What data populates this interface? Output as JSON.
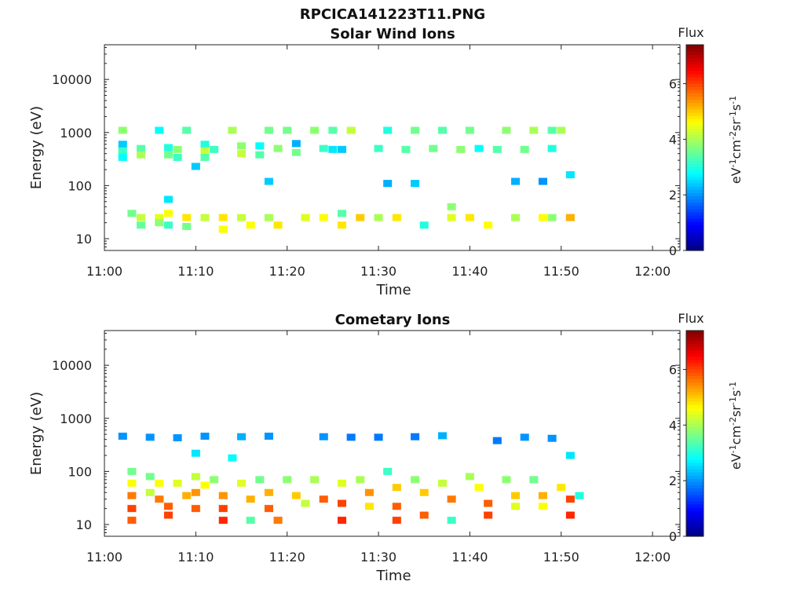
{
  "figure_title": "RPCICA141223T11.PNG",
  "colorbar": {
    "label": "Flux",
    "unit": "eV-1cm-2sr-1s-1",
    "ticks": [
      "0",
      "2",
      "4",
      "6"
    ],
    "range": [
      0,
      7.4
    ],
    "colormap": "jet"
  },
  "chart_data": [
    {
      "type": "heatmap",
      "title": "Solar Wind Ions",
      "xlabel": "Time",
      "ylabel": "Energy (eV)",
      "x_range": [
        "11:00",
        "12:03"
      ],
      "y_range": [
        6,
        45000
      ],
      "y_scale": "log",
      "x_ticks": [
        "11:00",
        "11:10",
        "11:20",
        "11:30",
        "11:40",
        "11:50",
        "12:00"
      ],
      "y_ticks": [
        "10",
        "100",
        "1000",
        "10000"
      ],
      "grid": false,
      "cells": [
        {
          "t": "11:02",
          "e": 600,
          "v": 2.4
        },
        {
          "t": "11:02",
          "e": 450,
          "v": 3.2
        },
        {
          "t": "11:02",
          "e": 340,
          "v": 2.8
        },
        {
          "t": "11:02",
          "e": 1100,
          "v": 3.8
        },
        {
          "t": "11:04",
          "e": 25,
          "v": 4.2
        },
        {
          "t": "11:04",
          "e": 18,
          "v": 3.5
        },
        {
          "t": "11:04",
          "e": 500,
          "v": 3.4
        },
        {
          "t": "11:04",
          "e": 380,
          "v": 4.0
        },
        {
          "t": "11:03",
          "e": 30,
          "v": 3.6
        },
        {
          "t": "11:06",
          "e": 1100,
          "v": 2.8
        },
        {
          "t": "11:06",
          "e": 25,
          "v": 4.4
        },
        {
          "t": "11:06",
          "e": 20,
          "v": 3.8
        },
        {
          "t": "11:07",
          "e": 520,
          "v": 3.0
        },
        {
          "t": "11:07",
          "e": 380,
          "v": 3.6
        },
        {
          "t": "11:07",
          "e": 30,
          "v": 4.6
        },
        {
          "t": "11:07",
          "e": 18,
          "v": 3.2
        },
        {
          "t": "11:07",
          "e": 55,
          "v": 2.6
        },
        {
          "t": "11:08",
          "e": 480,
          "v": 3.8
        },
        {
          "t": "11:08",
          "e": 340,
          "v": 3.2
        },
        {
          "t": "11:09",
          "e": 1100,
          "v": 3.4
        },
        {
          "t": "11:09",
          "e": 25,
          "v": 4.8
        },
        {
          "t": "11:09",
          "e": 17,
          "v": 3.6
        },
        {
          "t": "11:10",
          "e": 230,
          "v": 2.4
        },
        {
          "t": "11:11",
          "e": 600,
          "v": 3.0
        },
        {
          "t": "11:11",
          "e": 450,
          "v": 4.2
        },
        {
          "t": "11:11",
          "e": 340,
          "v": 3.4
        },
        {
          "t": "11:11",
          "e": 25,
          "v": 4.2
        },
        {
          "t": "11:12",
          "e": 480,
          "v": 3.2
        },
        {
          "t": "11:13",
          "e": 25,
          "v": 4.8
        },
        {
          "t": "11:13",
          "e": 15,
          "v": 4.6
        },
        {
          "t": "11:14",
          "e": 1100,
          "v": 4.0
        },
        {
          "t": "11:15",
          "e": 560,
          "v": 3.8
        },
        {
          "t": "11:15",
          "e": 400,
          "v": 4.2
        },
        {
          "t": "11:15",
          "e": 25,
          "v": 4.2
        },
        {
          "t": "11:16",
          "e": 18,
          "v": 4.6
        },
        {
          "t": "11:17",
          "e": 560,
          "v": 2.8
        },
        {
          "t": "11:17",
          "e": 380,
          "v": 3.4
        },
        {
          "t": "11:18",
          "e": 120,
          "v": 2.4
        },
        {
          "t": "11:18",
          "e": 1100,
          "v": 3.6
        },
        {
          "t": "11:18",
          "e": 25,
          "v": 4.0
        },
        {
          "t": "11:19",
          "e": 500,
          "v": 3.8
        },
        {
          "t": "11:19",
          "e": 18,
          "v": 4.8
        },
        {
          "t": "11:20",
          "e": 1100,
          "v": 3.6
        },
        {
          "t": "11:21",
          "e": 620,
          "v": 2.2
        },
        {
          "t": "11:21",
          "e": 420,
          "v": 3.6
        },
        {
          "t": "11:22",
          "e": 25,
          "v": 4.4
        },
        {
          "t": "11:23",
          "e": 1100,
          "v": 3.8
        },
        {
          "t": "11:24",
          "e": 500,
          "v": 3.2
        },
        {
          "t": "11:24",
          "e": 25,
          "v": 4.6
        },
        {
          "t": "11:25",
          "e": 480,
          "v": 2.6
        },
        {
          "t": "11:25",
          "e": 1100,
          "v": 3.4
        },
        {
          "t": "11:26",
          "e": 480,
          "v": 2.4
        },
        {
          "t": "11:26",
          "e": 30,
          "v": 3.4
        },
        {
          "t": "11:26",
          "e": 18,
          "v": 4.8
        },
        {
          "t": "11:27",
          "e": 1100,
          "v": 4.2
        },
        {
          "t": "11:28",
          "e": 25,
          "v": 5.0
        },
        {
          "t": "11:30",
          "e": 500,
          "v": 3.2
        },
        {
          "t": "11:30",
          "e": 25,
          "v": 4.0
        },
        {
          "t": "11:31",
          "e": 110,
          "v": 2.2
        },
        {
          "t": "11:31",
          "e": 1100,
          "v": 3.0
        },
        {
          "t": "11:32",
          "e": 25,
          "v": 4.8
        },
        {
          "t": "11:33",
          "e": 480,
          "v": 3.4
        },
        {
          "t": "11:34",
          "e": 110,
          "v": 2.4
        },
        {
          "t": "11:34",
          "e": 1100,
          "v": 3.6
        },
        {
          "t": "11:35",
          "e": 18,
          "v": 3.0
        },
        {
          "t": "11:36",
          "e": 500,
          "v": 3.6
        },
        {
          "t": "11:37",
          "e": 1100,
          "v": 3.4
        },
        {
          "t": "11:38",
          "e": 25,
          "v": 4.4
        },
        {
          "t": "11:38",
          "e": 40,
          "v": 3.8
        },
        {
          "t": "11:39",
          "e": 480,
          "v": 3.8
        },
        {
          "t": "11:40",
          "e": 1100,
          "v": 3.6
        },
        {
          "t": "11:40",
          "e": 25,
          "v": 4.8
        },
        {
          "t": "11:41",
          "e": 500,
          "v": 2.8
        },
        {
          "t": "11:42",
          "e": 18,
          "v": 4.6
        },
        {
          "t": "11:43",
          "e": 480,
          "v": 3.4
        },
        {
          "t": "11:44",
          "e": 1100,
          "v": 3.8
        },
        {
          "t": "11:45",
          "e": 120,
          "v": 2.2
        },
        {
          "t": "11:45",
          "e": 25,
          "v": 4.0
        },
        {
          "t": "11:46",
          "e": 480,
          "v": 3.6
        },
        {
          "t": "11:47",
          "e": 1100,
          "v": 4.0
        },
        {
          "t": "11:48",
          "e": 120,
          "v": 2.0
        },
        {
          "t": "11:48",
          "e": 25,
          "v": 4.6
        },
        {
          "t": "11:49",
          "e": 1100,
          "v": 3.4
        },
        {
          "t": "11:49",
          "e": 500,
          "v": 3.0
        },
        {
          "t": "11:49",
          "e": 25,
          "v": 3.8
        },
        {
          "t": "11:50",
          "e": 1100,
          "v": 4.0
        },
        {
          "t": "11:51",
          "e": 160,
          "v": 2.6
        },
        {
          "t": "11:51",
          "e": 25,
          "v": 5.2
        }
      ]
    },
    {
      "type": "heatmap",
      "title": "Cometary Ions",
      "xlabel": "Time",
      "ylabel": "Energy (eV)",
      "x_range": [
        "11:00",
        "12:03"
      ],
      "y_range": [
        6,
        45000
      ],
      "y_scale": "log",
      "x_ticks": [
        "11:00",
        "11:10",
        "11:20",
        "11:30",
        "11:40",
        "11:50",
        "12:00"
      ],
      "y_ticks": [
        "10",
        "100",
        "1000",
        "10000"
      ],
      "grid": false,
      "cells": [
        {
          "t": "11:02",
          "e": 460,
          "v": 2.0
        },
        {
          "t": "11:05",
          "e": 440,
          "v": 2.0
        },
        {
          "t": "11:08",
          "e": 430,
          "v": 2.0
        },
        {
          "t": "11:11",
          "e": 460,
          "v": 2.0
        },
        {
          "t": "11:15",
          "e": 450,
          "v": 2.2
        },
        {
          "t": "11:18",
          "e": 460,
          "v": 2.0
        },
        {
          "t": "11:24",
          "e": 450,
          "v": 2.0
        },
        {
          "t": "11:27",
          "e": 440,
          "v": 1.8
        },
        {
          "t": "11:30",
          "e": 440,
          "v": 1.8
        },
        {
          "t": "11:34",
          "e": 450,
          "v": 1.8
        },
        {
          "t": "11:37",
          "e": 470,
          "v": 2.2
        },
        {
          "t": "11:43",
          "e": 380,
          "v": 1.8
        },
        {
          "t": "11:46",
          "e": 440,
          "v": 2.0
        },
        {
          "t": "11:49",
          "e": 420,
          "v": 2.0
        },
        {
          "t": "11:10",
          "e": 220,
          "v": 2.6
        },
        {
          "t": "11:14",
          "e": 180,
          "v": 2.8
        },
        {
          "t": "11:51",
          "e": 200,
          "v": 2.6
        },
        {
          "t": "11:03",
          "e": 100,
          "v": 3.6
        },
        {
          "t": "11:03",
          "e": 60,
          "v": 4.6
        },
        {
          "t": "11:03",
          "e": 35,
          "v": 5.6
        },
        {
          "t": "11:03",
          "e": 20,
          "v": 6.0
        },
        {
          "t": "11:03",
          "e": 12,
          "v": 5.8
        },
        {
          "t": "11:05",
          "e": 80,
          "v": 3.6
        },
        {
          "t": "11:05",
          "e": 40,
          "v": 4.2
        },
        {
          "t": "11:06",
          "e": 60,
          "v": 4.6
        },
        {
          "t": "11:06",
          "e": 30,
          "v": 5.6
        },
        {
          "t": "11:07",
          "e": 22,
          "v": 5.8
        },
        {
          "t": "11:07",
          "e": 15,
          "v": 6.0
        },
        {
          "t": "11:08",
          "e": 60,
          "v": 4.4
        },
        {
          "t": "11:09",
          "e": 35,
          "v": 5.2
        },
        {
          "t": "11:10",
          "e": 80,
          "v": 4.2
        },
        {
          "t": "11:10",
          "e": 40,
          "v": 5.4
        },
        {
          "t": "11:10",
          "e": 20,
          "v": 5.8
        },
        {
          "t": "11:11",
          "e": 55,
          "v": 4.6
        },
        {
          "t": "11:12",
          "e": 70,
          "v": 3.8
        },
        {
          "t": "11:13",
          "e": 35,
          "v": 5.4
        },
        {
          "t": "11:13",
          "e": 20,
          "v": 6.0
        },
        {
          "t": "11:13",
          "e": 12,
          "v": 6.2
        },
        {
          "t": "11:15",
          "e": 60,
          "v": 4.4
        },
        {
          "t": "11:16",
          "e": 30,
          "v": 5.2
        },
        {
          "t": "11:16",
          "e": 12,
          "v": 3.4
        },
        {
          "t": "11:17",
          "e": 70,
          "v": 3.6
        },
        {
          "t": "11:18",
          "e": 40,
          "v": 5.2
        },
        {
          "t": "11:18",
          "e": 20,
          "v": 5.8
        },
        {
          "t": "11:19",
          "e": 12,
          "v": 5.6
        },
        {
          "t": "11:20",
          "e": 70,
          "v": 3.8
        },
        {
          "t": "11:21",
          "e": 35,
          "v": 5.0
        },
        {
          "t": "11:22",
          "e": 25,
          "v": 4.2
        },
        {
          "t": "11:23",
          "e": 70,
          "v": 4.0
        },
        {
          "t": "11:24",
          "e": 30,
          "v": 5.8
        },
        {
          "t": "11:26",
          "e": 60,
          "v": 4.4
        },
        {
          "t": "11:26",
          "e": 25,
          "v": 6.0
        },
        {
          "t": "11:26",
          "e": 12,
          "v": 6.2
        },
        {
          "t": "11:28",
          "e": 70,
          "v": 4.0
        },
        {
          "t": "11:29",
          "e": 40,
          "v": 5.4
        },
        {
          "t": "11:29",
          "e": 22,
          "v": 4.8
        },
        {
          "t": "11:31",
          "e": 100,
          "v": 3.2
        },
        {
          "t": "11:32",
          "e": 50,
          "v": 5.0
        },
        {
          "t": "11:32",
          "e": 22,
          "v": 5.8
        },
        {
          "t": "11:32",
          "e": 12,
          "v": 6.0
        },
        {
          "t": "11:34",
          "e": 70,
          "v": 3.8
        },
        {
          "t": "11:35",
          "e": 40,
          "v": 5.0
        },
        {
          "t": "11:35",
          "e": 15,
          "v": 5.8
        },
        {
          "t": "11:37",
          "e": 60,
          "v": 4.2
        },
        {
          "t": "11:38",
          "e": 30,
          "v": 5.6
        },
        {
          "t": "11:38",
          "e": 12,
          "v": 3.2
        },
        {
          "t": "11:40",
          "e": 80,
          "v": 4.0
        },
        {
          "t": "11:41",
          "e": 50,
          "v": 4.6
        },
        {
          "t": "11:42",
          "e": 25,
          "v": 5.8
        },
        {
          "t": "11:42",
          "e": 15,
          "v": 6.0
        },
        {
          "t": "11:44",
          "e": 70,
          "v": 3.8
        },
        {
          "t": "11:45",
          "e": 35,
          "v": 5.0
        },
        {
          "t": "11:45",
          "e": 22,
          "v": 4.4
        },
        {
          "t": "11:47",
          "e": 70,
          "v": 3.6
        },
        {
          "t": "11:48",
          "e": 35,
          "v": 5.2
        },
        {
          "t": "11:48",
          "e": 22,
          "v": 4.6
        },
        {
          "t": "11:50",
          "e": 50,
          "v": 4.8
        },
        {
          "t": "11:51",
          "e": 30,
          "v": 6.0
        },
        {
          "t": "11:51",
          "e": 15,
          "v": 6.2
        },
        {
          "t": "11:52",
          "e": 35,
          "v": 3.0
        }
      ]
    }
  ]
}
